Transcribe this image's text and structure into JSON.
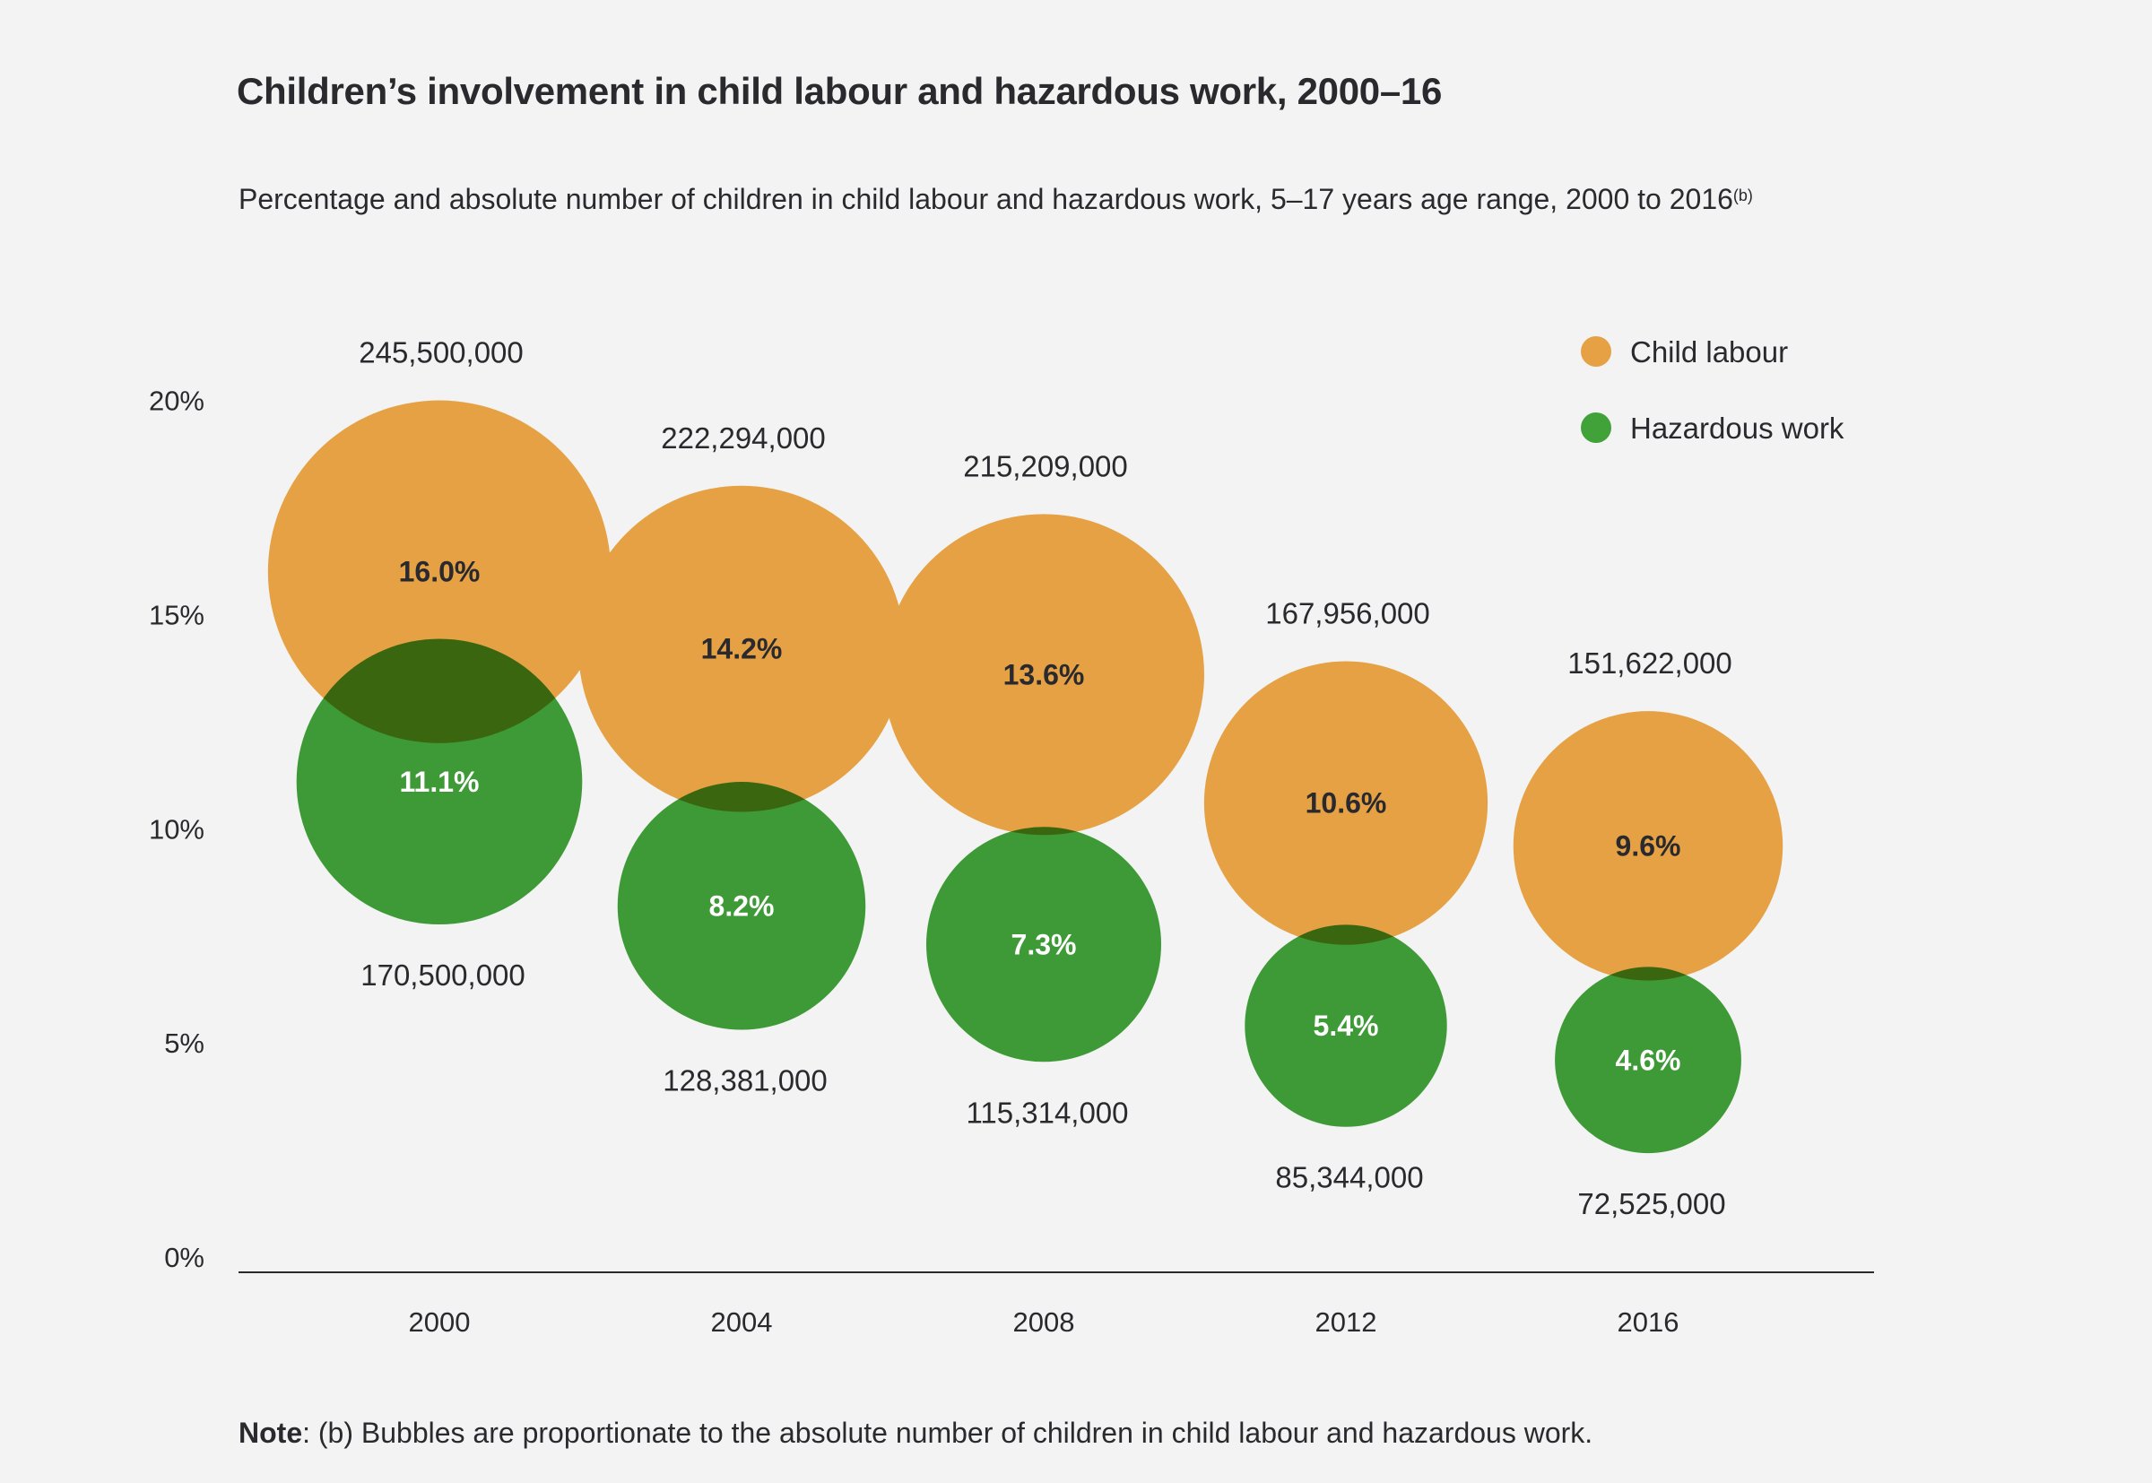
{
  "chart_data": {
    "type": "bubble",
    "title": "Children’s involvement in child labour and hazardous work, 2000–16",
    "subtitle": "Percentage and absolute number of children in child labour and hazardous work, 5–17 years age range, 2000 to 2016",
    "subtitle_sup": "(b)",
    "note_label": "Note",
    "note_text": ": (b) Bubbles are proportionate to the absolute number of children in child labour and hazardous work.",
    "categories": [
      "2000",
      "2004",
      "2008",
      "2012",
      "2016"
    ],
    "ylim": [
      0,
      20
    ],
    "yticks": [
      0,
      5,
      10,
      15,
      20
    ],
    "ytick_labels": [
      "0%",
      "5%",
      "10%",
      "15%",
      "20%"
    ],
    "legend_position": "top-right",
    "series": [
      {
        "name": "Child labour",
        "color": "#E5A144",
        "text_color": "#2a2a2e",
        "percent": [
          16.0,
          14.2,
          13.6,
          10.6,
          9.6
        ],
        "percent_labels": [
          "16.0%",
          "14.2%",
          "13.6%",
          "10.6%",
          "9.6%"
        ],
        "absolute": [
          245500000,
          222294000,
          215209000,
          167956000,
          151622000
        ],
        "absolute_labels": [
          "245,500,000",
          "222,294,000",
          "215,209,000",
          "167,956,000",
          "151,622,000"
        ]
      },
      {
        "name": "Hazardous work",
        "color": "#41A23A",
        "text_color": "#ffffff",
        "percent": [
          11.1,
          8.2,
          7.3,
          5.4,
          4.6
        ],
        "percent_labels": [
          "11.1%",
          "8.2%",
          "7.3%",
          "5.4%",
          "4.6%"
        ],
        "absolute": [
          170500000,
          128381000,
          115314000,
          85344000,
          72525000
        ],
        "absolute_labels": [
          "170,500,000",
          "128,381,000",
          "115,314,000",
          "85,344,000",
          "72,525,000"
        ]
      }
    ]
  }
}
